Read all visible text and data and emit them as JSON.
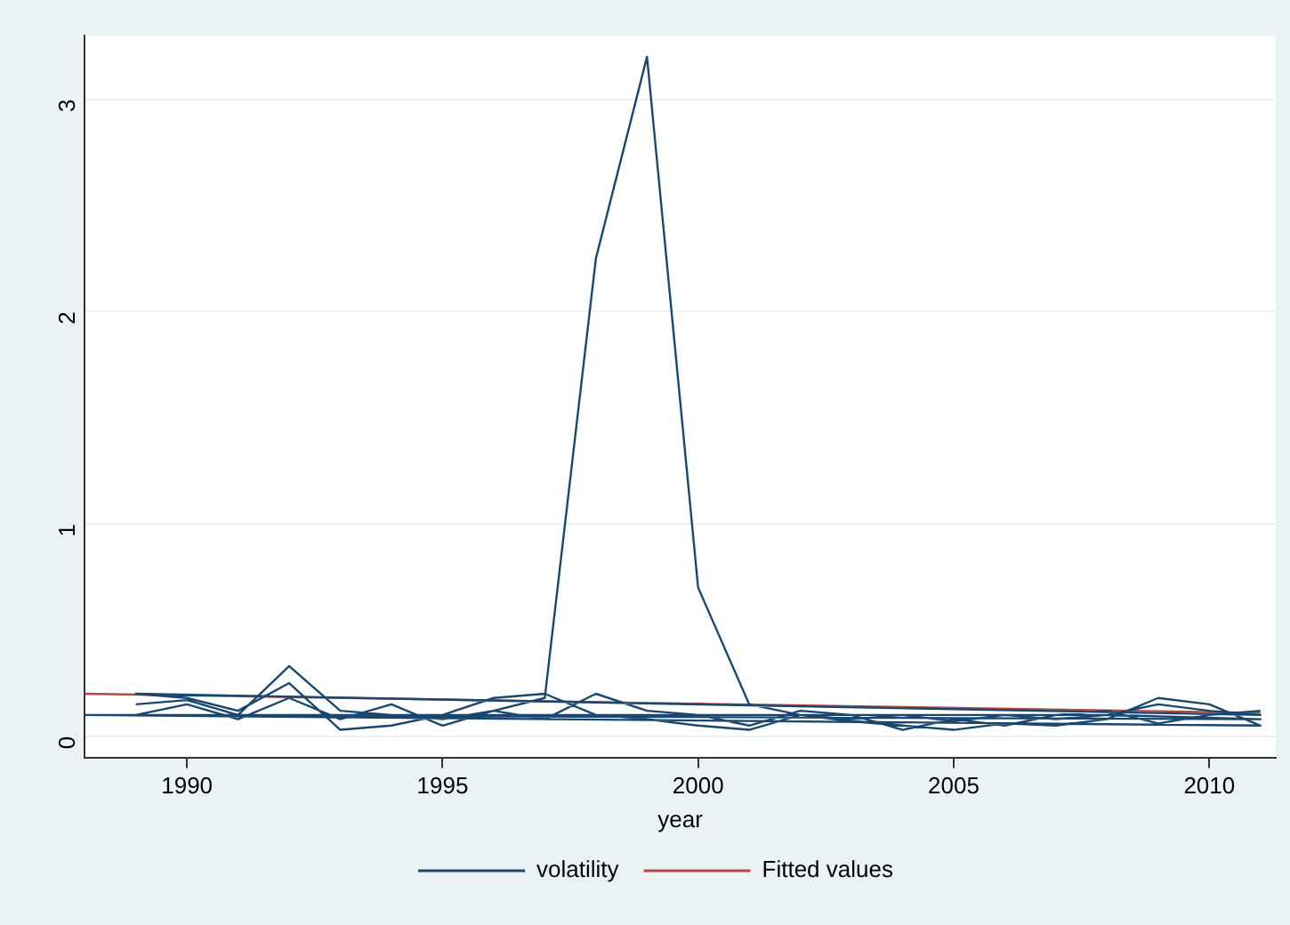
{
  "chart_data": {
    "type": "line",
    "xlabel": "year",
    "xlim": [
      1988,
      2011.3
    ],
    "xticks": [
      1990,
      1995,
      2000,
      2005,
      2010
    ],
    "ylim": [
      -0.1,
      3.3
    ],
    "yticks": [
      0,
      1,
      2,
      3
    ],
    "grid": "y",
    "legend": "bottom",
    "marker": "none",
    "series": [
      {
        "name": "volatility",
        "color": "#1a476f",
        "x": [
          1989,
          1990,
          1991,
          1992,
          1993,
          1994,
          1995,
          1996,
          1997,
          1998,
          1999,
          2000,
          2001,
          2002,
          2003,
          2004,
          2005,
          2006,
          2007,
          2008,
          2009,
          2010,
          2011,
          1989,
          1990,
          1991,
          1992,
          1993,
          1994,
          1995,
          1996,
          1997,
          1998,
          1999,
          2000,
          2001,
          2002,
          2003,
          2004,
          2005,
          2006,
          2007,
          2008,
          2009,
          2010,
          2011,
          1988,
          1991,
          1995,
          1998,
          2001,
          2005,
          2008,
          2011,
          1989,
          1990,
          1991,
          1992,
          1993,
          1994,
          1995,
          1996,
          1997,
          1998,
          1999,
          2000,
          2001,
          2002,
          2003,
          2004,
          2005,
          2006,
          2007,
          2008,
          2009,
          2010,
          2011
        ],
        "values": [
          0.15,
          0.17,
          0.1,
          0.33,
          0.12,
          0.1,
          0.08,
          0.12,
          0.18,
          2.25,
          3.2,
          0.7,
          0.15,
          0.1,
          0.08,
          0.1,
          0.07,
          0.1,
          0.08,
          0.1,
          0.15,
          0.12,
          0.1,
          0.2,
          0.18,
          0.12,
          0.25,
          0.03,
          0.05,
          0.1,
          0.18,
          0.2,
          0.1,
          0.08,
          0.05,
          0.03,
          0.1,
          0.07,
          0.05,
          0.03,
          0.06,
          0.05,
          0.08,
          0.18,
          0.15,
          0.05,
          0.1,
          0.1,
          0.1,
          0.1,
          0.1,
          0.1,
          0.1,
          0.08,
          0.1,
          0.15,
          0.08,
          0.18,
          0.08,
          0.15,
          0.05,
          0.12,
          0.08,
          0.2,
          0.12,
          0.1,
          0.05,
          0.12,
          0.1,
          0.03,
          0.08,
          0.05,
          0.1,
          0.12,
          0.06,
          0.1,
          0.12
        ]
      },
      {
        "name": "Fitted values",
        "color": "#b5483f",
        "x": [
          1988,
          2011
        ],
        "values": [
          0.2,
          0.11
        ]
      }
    ]
  }
}
